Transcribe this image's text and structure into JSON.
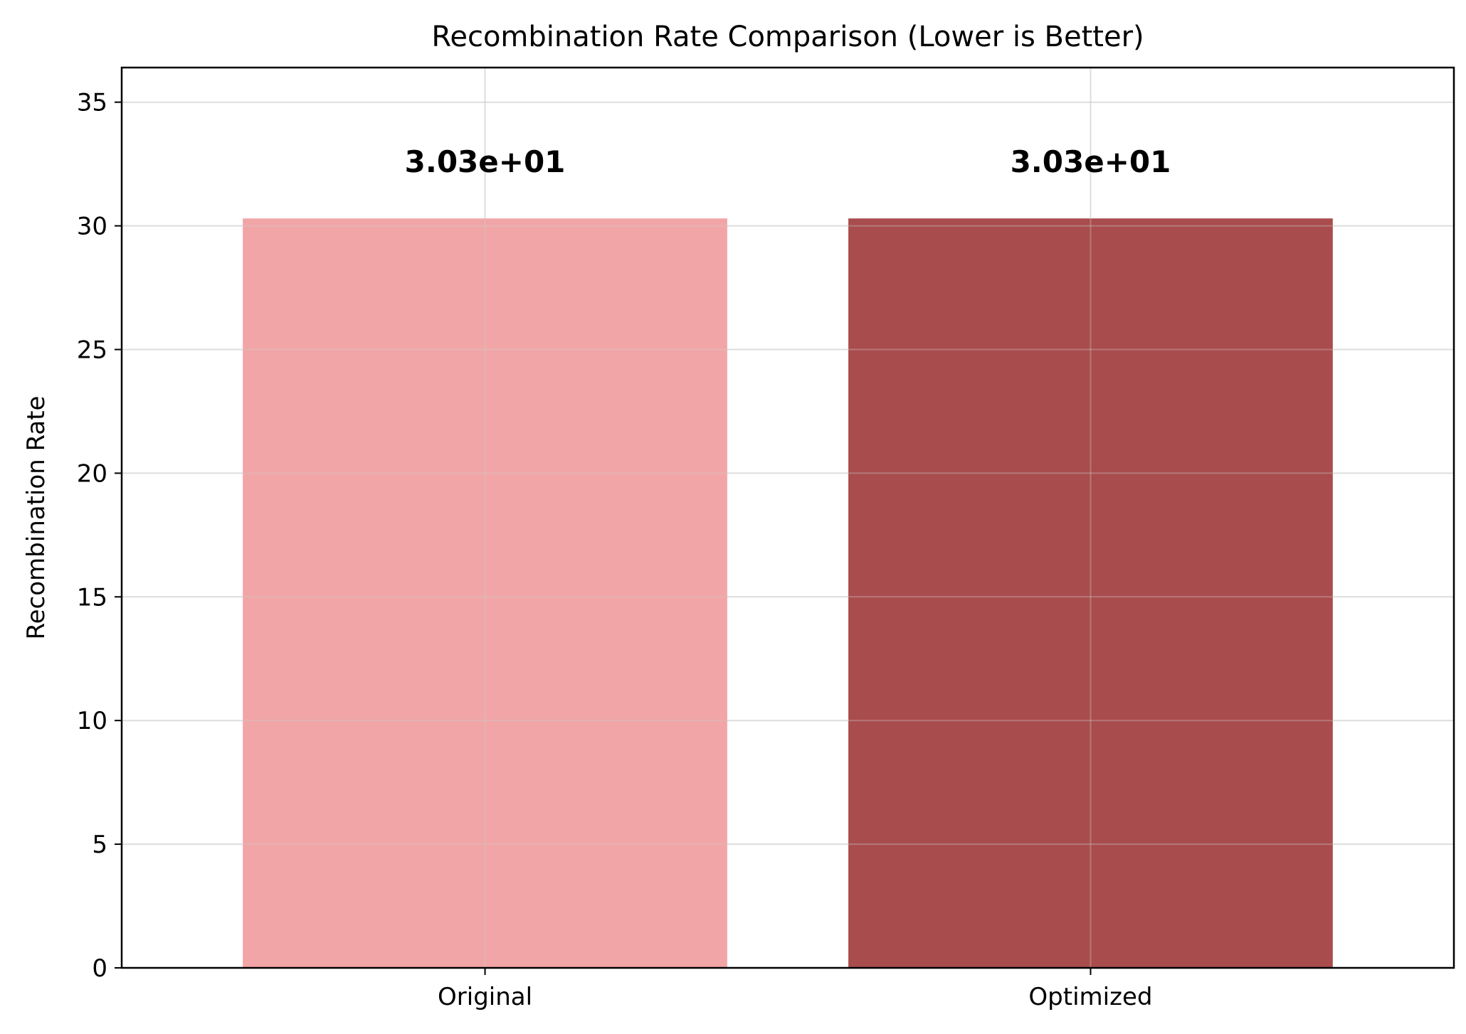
{
  "chart_data": {
    "type": "bar",
    "title": "Recombination Rate Comparison (Lower is Better)",
    "xlabel": "",
    "ylabel": "Recombination Rate",
    "categories": [
      "Original",
      "Optimized"
    ],
    "values": [
      30.3,
      30.3
    ],
    "data_labels": [
      "3.03e+01",
      "3.03e+01"
    ],
    "bar_colors": [
      "#f2a5a6",
      "#a94c4d"
    ],
    "ylim": [
      0,
      36.4
    ],
    "yticks": [
      0,
      5,
      10,
      15,
      20,
      25,
      30,
      35
    ],
    "grid": true,
    "legend": "none"
  }
}
